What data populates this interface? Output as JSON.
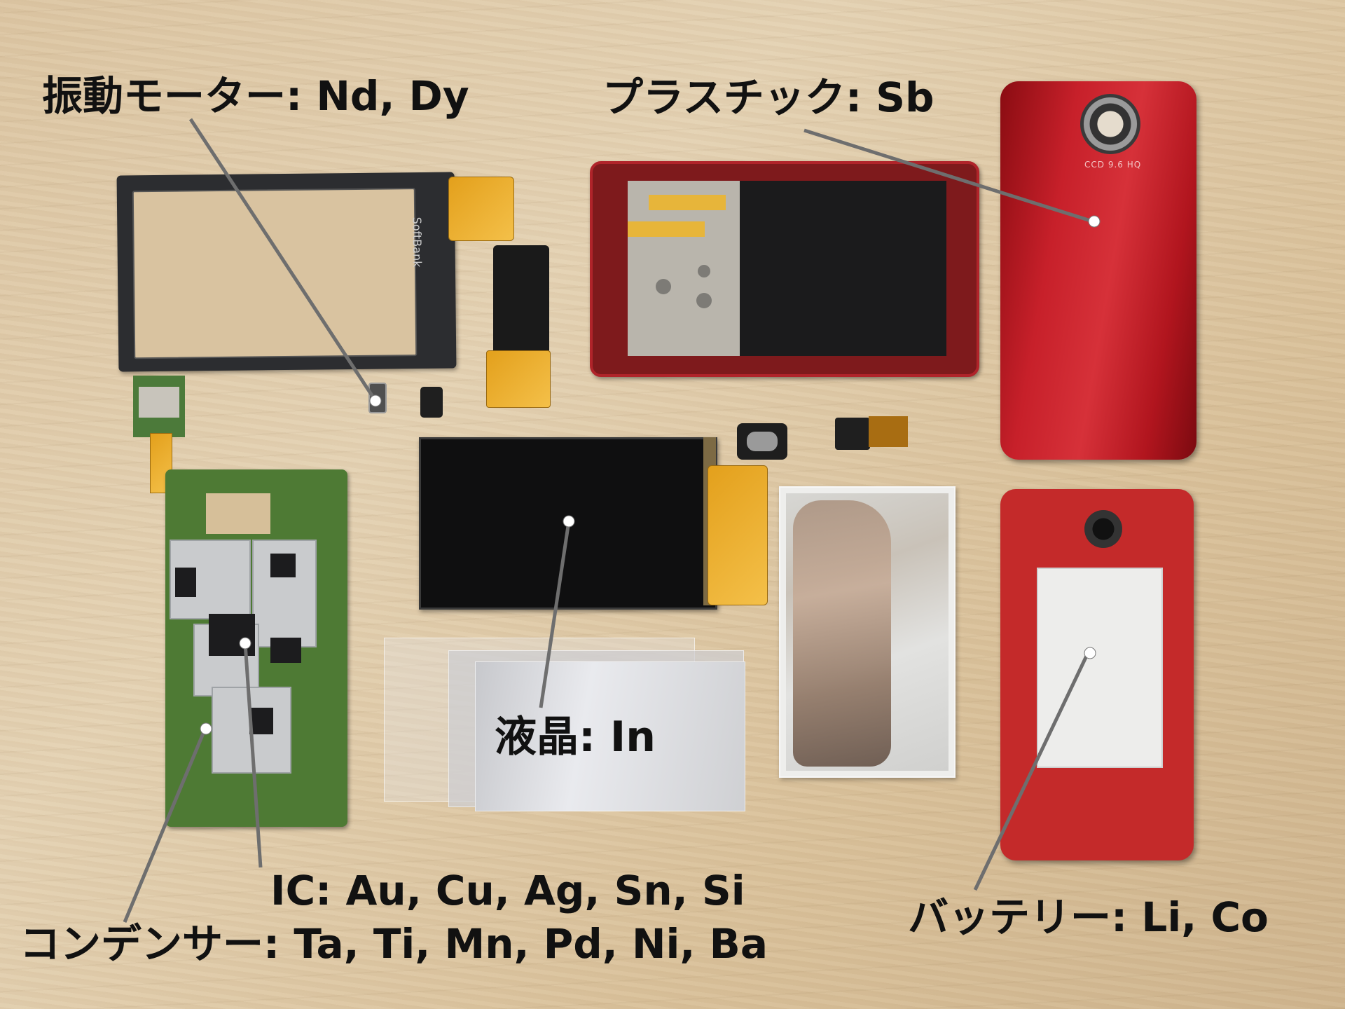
{
  "labels": {
    "vibration_motor": "振動モーター: Nd, Dy",
    "plastic": "プラスチック: Sb",
    "lcd": "液晶: In",
    "ic": "IC: Au, Cu, Ag, Sn, Si",
    "capacitor": "コンデンサー: Ta, Ti, Mn, Pd, Ni, Ba",
    "battery": "バッテリー: Li, Co"
  },
  "printed_marks": {
    "touch_panel_logo": "SoftBank",
    "back_cover_text": "CCD 9.6 HQ"
  },
  "colors": {
    "label_text": "#111111",
    "leader_line": "#6e6e6e",
    "pointer_dot": "#ffffff",
    "table_wood": "#dcc6a4",
    "phone_red": "#c7202a"
  }
}
